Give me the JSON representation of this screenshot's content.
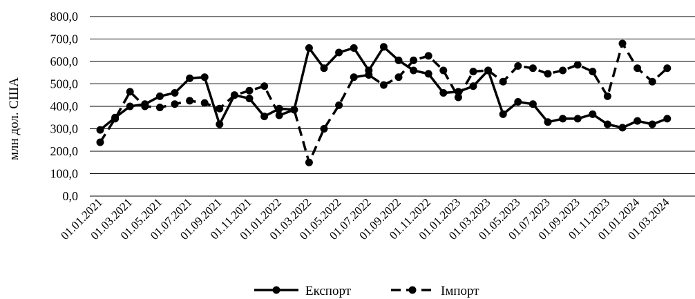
{
  "chart_data": {
    "type": "line",
    "ylabel": "млн дол. США",
    "xlabel": "",
    "title": "",
    "ylim": [
      0,
      800
    ],
    "y_ticks": [
      "0,0",
      "100,0",
      "200,0",
      "300,0",
      "400,0",
      "500,0",
      "600,0",
      "700,0",
      "800,0"
    ],
    "x_tick_labels": [
      "01.01.2021",
      "01.03.2021",
      "01.05.2021",
      "01.07.2021",
      "01.09.2021",
      "01.11.2021",
      "01.01.2022",
      "01.03.2022",
      "01.05.2022",
      "01.07.2022",
      "01.09.2022",
      "01.11.2022",
      "01.01.2023",
      "01.03.2023",
      "01.05.2023",
      "01.07.2023",
      "01.09.2023",
      "01.11.2023",
      "01.01.2024",
      "01.03.2024"
    ],
    "grid": "horizontal",
    "legend_position": "bottom",
    "x": [
      "01.01.2021",
      "01.02.2021",
      "01.03.2021",
      "01.04.2021",
      "01.05.2021",
      "01.06.2021",
      "01.07.2021",
      "01.08.2021",
      "01.09.2021",
      "01.10.2021",
      "01.11.2021",
      "01.12.2021",
      "01.01.2022",
      "01.02.2022",
      "01.03.2022",
      "01.04.2022",
      "01.05.2022",
      "01.06.2022",
      "01.07.2022",
      "01.08.2022",
      "01.09.2022",
      "01.10.2022",
      "01.11.2022",
      "01.12.2022",
      "01.01.2023",
      "01.02.2023",
      "01.03.2023",
      "01.04.2023",
      "01.05.2023",
      "01.06.2023",
      "01.07.2023",
      "01.08.2023",
      "01.09.2023",
      "01.10.2023",
      "01.11.2023",
      "01.12.2023",
      "01.01.2024",
      "01.02.2024",
      "01.03.2024"
    ],
    "series": [
      {
        "name": "Експорт",
        "style": "solid",
        "color": "#000000",
        "values": [
          295,
          350,
          400,
          410,
          445,
          460,
          525,
          530,
          320,
          450,
          435,
          355,
          390,
          385,
          660,
          570,
          640,
          660,
          560,
          665,
          605,
          560,
          545,
          460,
          465,
          490,
          560,
          365,
          420,
          410,
          330,
          345,
          345,
          365,
          320,
          305,
          335,
          320,
          345
        ]
      },
      {
        "name": "Імпорт",
        "style": "dashed",
        "color": "#000000",
        "values": [
          240,
          345,
          465,
          400,
          395,
          410,
          425,
          415,
          390,
          450,
          470,
          490,
          360,
          385,
          150,
          300,
          405,
          530,
          540,
          495,
          530,
          605,
          625,
          560,
          440,
          555,
          560,
          510,
          580,
          570,
          545,
          560,
          585,
          555,
          445,
          680,
          570,
          510,
          570
        ]
      }
    ]
  }
}
